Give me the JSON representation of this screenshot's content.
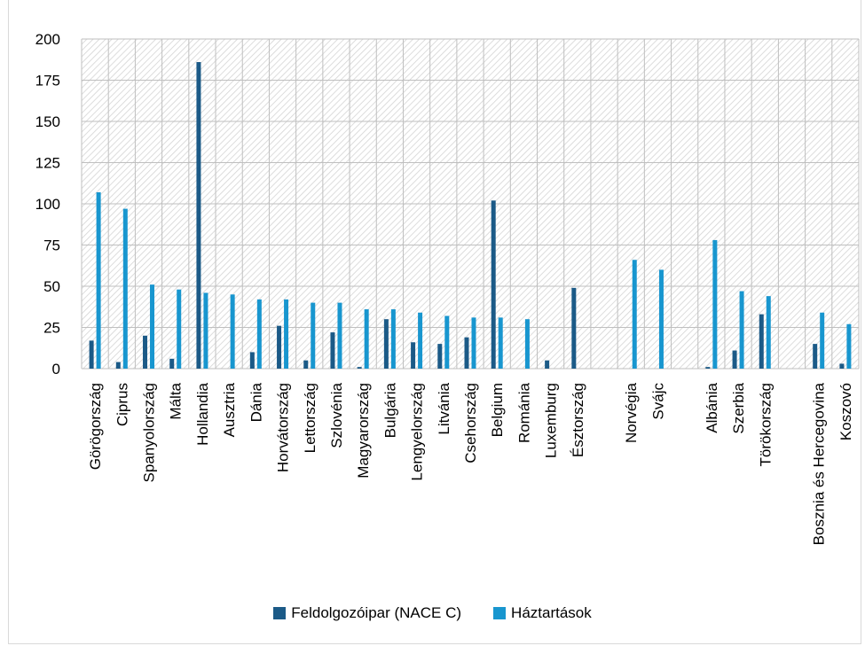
{
  "chart_data": {
    "type": "bar",
    "title": "",
    "xlabel": "",
    "ylabel": "",
    "ylim": [
      0,
      200
    ],
    "yticks": [
      0,
      25,
      50,
      75,
      100,
      125,
      150,
      175,
      200
    ],
    "grid": true,
    "legend_position": "bottom",
    "categories": [
      "Görögország",
      "Ciprus",
      "Spanyolország",
      "Málta",
      "Hollandia",
      "Ausztria",
      "Dánia",
      "Horvátország",
      "Lettország",
      "Szlovénia",
      "Magyarország",
      "Bulgária",
      "Lengyelország",
      "Litvánia",
      "Csehország",
      "Belgium",
      "Románia",
      "Luxemburg",
      "Észtország",
      "",
      "Norvégia",
      "Svájc",
      "",
      "Albánia",
      "Szerbia",
      "Törökország",
      "",
      "Bosznia és Hercegovina",
      "Koszovó"
    ],
    "series": [
      {
        "name": "Feldolgozóipar (NACE C)",
        "color": "#1b5a87",
        "values": [
          17,
          4,
          20,
          6,
          186,
          0,
          10,
          26,
          5,
          22,
          1,
          30,
          16,
          15,
          19,
          102,
          0,
          5,
          49,
          null,
          0,
          0,
          null,
          1,
          11,
          33,
          null,
          15,
          3
        ]
      },
      {
        "name": "Háztartások",
        "color": "#1896cf",
        "values": [
          107,
          97,
          51,
          48,
          46,
          45,
          42,
          42,
          40,
          40,
          36,
          36,
          34,
          32,
          31,
          31,
          30,
          0,
          0,
          null,
          66,
          60,
          null,
          78,
          47,
          44,
          null,
          34,
          27
        ]
      }
    ]
  },
  "legend": {
    "item0": "Feldolgozóipar (NACE C)",
    "item1": "Háztartások"
  }
}
